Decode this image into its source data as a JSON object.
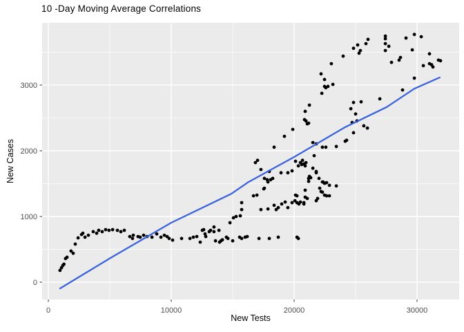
{
  "chart_data": {
    "type": "scatter",
    "title": "10 -Day Moving Average Correlations",
    "xlabel": "New Tests",
    "ylabel": "New Cases",
    "xlim": [
      -506,
      33427
    ],
    "ylim": [
      -263,
      3947
    ],
    "x_ticks": {
      "major": [
        0,
        10000,
        20000,
        30000
      ],
      "labels": [
        "0",
        "10000",
        "20000",
        "30000"
      ],
      "minor": [
        5000,
        15000,
        25000
      ]
    },
    "y_ticks": {
      "major": [
        0,
        1000,
        2000,
        3000
      ],
      "labels": [
        "0",
        "1000",
        "2000",
        "3000"
      ],
      "minor": [
        500,
        1500,
        2500,
        3500
      ]
    },
    "grid": true,
    "legend": "none",
    "colors": {
      "panel_background": "#EBEBEB",
      "grid_major": "#FFFFFF",
      "grid_minor": "#FFFFFF",
      "point": "#000000",
      "trend": "#3B63DD",
      "tick_text": "#4D4D4D",
      "tick_mark": "#333333",
      "title_text": "#000000"
    },
    "trend_line": {
      "name": "fitted-line",
      "points": [
        [
          955,
          -95
        ],
        [
          5060,
          370
        ],
        [
          10000,
          905
        ],
        [
          14890,
          1345
        ],
        [
          16290,
          1525
        ],
        [
          20000,
          1905
        ],
        [
          24160,
          2360
        ],
        [
          27530,
          2665
        ],
        [
          29780,
          2945
        ],
        [
          31850,
          3115
        ]
      ]
    },
    "points": [
      [
        950,
        180
      ],
      [
        1070,
        220
      ],
      [
        1180,
        255
      ],
      [
        1270,
        275
      ],
      [
        1400,
        360
      ],
      [
        1520,
        380
      ],
      [
        1850,
        475
      ],
      [
        2020,
        440
      ],
      [
        2190,
        580
      ],
      [
        2420,
        675
      ],
      [
        2700,
        725
      ],
      [
        2810,
        745
      ],
      [
        2980,
        685
      ],
      [
        3260,
        715
      ],
      [
        3650,
        770
      ],
      [
        3930,
        745
      ],
      [
        4100,
        790
      ],
      [
        4380,
        770
      ],
      [
        4660,
        800
      ],
      [
        4940,
        790
      ],
      [
        5230,
        800
      ],
      [
        5620,
        790
      ],
      [
        5900,
        770
      ],
      [
        6180,
        790
      ],
      [
        6630,
        695
      ],
      [
        6850,
        665
      ],
      [
        6910,
        715
      ],
      [
        7300,
        695
      ],
      [
        7470,
        685
      ],
      [
        7750,
        715
      ],
      [
        8030,
        695
      ],
      [
        8430,
        685
      ],
      [
        8820,
        735
      ],
      [
        9160,
        685
      ],
      [
        9440,
        715
      ],
      [
        9660,
        695
      ],
      [
        9830,
        665
      ],
      [
        10110,
        640
      ],
      [
        10840,
        665
      ],
      [
        11520,
        665
      ],
      [
        11800,
        685
      ],
      [
        12080,
        695
      ],
      [
        12360,
        610
      ],
      [
        12530,
        790
      ],
      [
        12640,
        800
      ],
      [
        12750,
        735
      ],
      [
        12810,
        695
      ],
      [
        13090,
        770
      ],
      [
        13200,
        790
      ],
      [
        13480,
        840
      ],
      [
        13480,
        770
      ],
      [
        13600,
        630
      ],
      [
        13880,
        790
      ],
      [
        13930,
        610
      ],
      [
        14050,
        630
      ],
      [
        14160,
        645
      ],
      [
        14490,
        685
      ],
      [
        14610,
        665
      ],
      [
        15000,
        630
      ],
      [
        15560,
        685
      ],
      [
        15730,
        665
      ],
      [
        16010,
        685
      ],
      [
        16180,
        695
      ],
      [
        17140,
        665
      ],
      [
        17980,
        665
      ],
      [
        18710,
        685
      ],
      [
        20230,
        685
      ],
      [
        20340,
        665
      ],
      [
        14780,
        905
      ],
      [
        15060,
        980
      ],
      [
        15280,
        1000
      ],
      [
        15620,
        1010
      ],
      [
        15730,
        1105
      ],
      [
        15730,
        1210
      ],
      [
        16690,
        1315
      ],
      [
        17870,
        1115
      ],
      [
        18370,
        1170
      ],
      [
        18540,
        1105
      ],
      [
        18710,
        1135
      ],
      [
        18990,
        1190
      ],
      [
        19270,
        1220
      ],
      [
        19490,
        1135
      ],
      [
        19830,
        1210
      ],
      [
        20060,
        1240
      ],
      [
        20230,
        1210
      ],
      [
        20390,
        1190
      ],
      [
        20790,
        1210
      ],
      [
        20900,
        1295
      ],
      [
        21800,
        1240
      ],
      [
        17020,
        1855
      ],
      [
        17300,
        1715
      ],
      [
        17580,
        1580
      ],
      [
        17580,
        1430
      ],
      [
        17300,
        1105
      ],
      [
        17980,
        1685
      ],
      [
        18090,
        1560
      ],
      [
        18260,
        1580
      ],
      [
        18930,
        1665
      ],
      [
        19490,
        1665
      ],
      [
        19830,
        1695
      ],
      [
        20110,
        1840
      ],
      [
        20340,
        1770
      ],
      [
        20510,
        1820
      ],
      [
        20620,
        1790
      ],
      [
        20680,
        1855
      ],
      [
        20790,
        1800
      ],
      [
        20900,
        1770
      ],
      [
        20900,
        1400
      ],
      [
        21070,
        1275
      ],
      [
        21180,
        1580
      ],
      [
        21180,
        1535
      ],
      [
        21240,
        1610
      ],
      [
        21350,
        1590
      ],
      [
        21520,
        1735
      ],
      [
        21630,
        1925
      ],
      [
        21800,
        1685
      ],
      [
        21800,
        1665
      ],
      [
        21910,
        1275
      ],
      [
        22020,
        1580
      ],
      [
        22080,
        1430
      ],
      [
        22190,
        1380
      ],
      [
        22300,
        1525
      ],
      [
        22470,
        1505
      ],
      [
        22470,
        1325
      ],
      [
        22640,
        1315
      ],
      [
        22870,
        1315
      ],
      [
        20110,
        1325
      ],
      [
        20230,
        1315
      ],
      [
        20510,
        1220
      ],
      [
        22360,
        1525
      ],
      [
        22640,
        1515
      ],
      [
        22870,
        1475
      ],
      [
        23430,
        1465
      ],
      [
        22300,
        1370
      ],
      [
        20790,
        1190
      ],
      [
        21520,
        2125
      ],
      [
        21800,
        2105
      ],
      [
        22300,
        2055
      ],
      [
        22580,
        2055
      ],
      [
        23430,
        2065
      ],
      [
        24160,
        2145
      ],
      [
        20960,
        1820
      ],
      [
        16850,
        1820
      ],
      [
        19890,
        2325
      ],
      [
        19210,
        2220
      ],
      [
        18370,
        2055
      ],
      [
        20840,
        2475
      ],
      [
        21070,
        2410
      ],
      [
        21180,
        2420
      ],
      [
        20900,
        2600
      ],
      [
        21240,
        2695
      ],
      [
        22250,
        2875
      ],
      [
        22190,
        3170
      ],
      [
        22470,
        3085
      ],
      [
        22470,
        2980
      ],
      [
        22750,
        2980
      ],
      [
        23150,
        3010
      ],
      [
        23990,
        3440
      ],
      [
        23030,
        3325
      ],
      [
        20960,
        2455
      ],
      [
        22580,
        2960
      ],
      [
        16970,
        1325
      ],
      [
        17530,
        1420
      ],
      [
        17810,
        1560
      ],
      [
        17870,
        1525
      ],
      [
        26010,
        3695
      ],
      [
        27420,
        3745
      ],
      [
        27420,
        3705
      ],
      [
        25170,
        3610
      ],
      [
        25840,
        3630
      ],
      [
        24830,
        3560
      ],
      [
        25390,
        3525
      ],
      [
        25280,
        3485
      ],
      [
        27420,
        3630
      ],
      [
        27700,
        3590
      ],
      [
        27420,
        3525
      ],
      [
        29100,
        3715
      ],
      [
        29780,
        3770
      ],
      [
        30340,
        3735
      ],
      [
        29610,
        3535
      ],
      [
        28650,
        3420
      ],
      [
        27920,
        3345
      ],
      [
        28540,
        3380
      ],
      [
        31010,
        3475
      ],
      [
        30510,
        3295
      ],
      [
        31010,
        3325
      ],
      [
        31180,
        3310
      ],
      [
        31290,
        3275
      ],
      [
        31740,
        3380
      ],
      [
        31910,
        3370
      ],
      [
        29780,
        3105
      ],
      [
        28820,
        2925
      ],
      [
        26970,
        2790
      ],
      [
        24830,
        2735
      ],
      [
        25450,
        2745
      ],
      [
        24610,
        2640
      ],
      [
        25000,
        2560
      ],
      [
        24720,
        2430
      ],
      [
        25110,
        2455
      ],
      [
        25670,
        2380
      ],
      [
        25960,
        2345
      ],
      [
        24830,
        2275
      ],
      [
        24270,
        2160
      ]
    ]
  }
}
